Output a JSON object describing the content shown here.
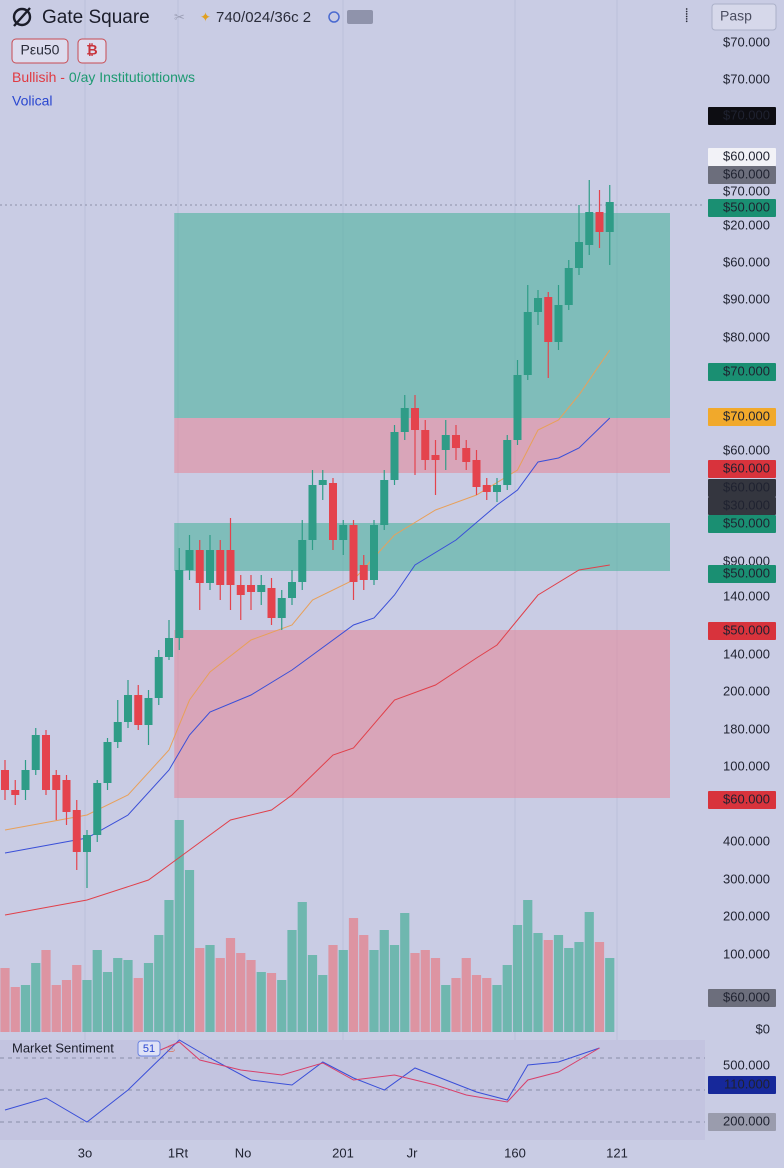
{
  "header": {
    "title": "Gate Square",
    "symbol": "740/024/36c 2",
    "search": "Pasp",
    "pair": "Pεu50",
    "coin": "₿",
    "indicator_a": "Bullisih -",
    "indicator_b": "0/ay Institutiottionws",
    "indicator_c": "Volical"
  },
  "chart_data": {
    "type": "candlestick",
    "ylim": [
      0,
      1040
    ],
    "volume_ylim": [
      0,
      1040
    ],
    "up_color": "#2f9c87",
    "down_color": "#e4434d",
    "volume_up_color": "#5fb3a6",
    "volume_down_color": "#e08a96",
    "open": [
      270,
      250,
      250,
      270,
      305,
      265,
      260,
      230,
      188,
      205,
      257,
      298,
      318,
      345,
      315,
      342,
      383,
      402,
      470,
      490,
      457,
      490,
      490,
      455,
      455,
      448,
      452,
      422,
      442,
      458,
      500,
      555,
      557,
      500,
      515,
      475,
      460,
      515,
      560,
      608,
      632,
      610,
      585,
      590,
      605,
      592,
      580,
      555,
      548,
      555,
      600,
      665,
      728,
      743,
      698,
      735,
      772,
      795,
      828,
      808
    ],
    "high": [
      280,
      260,
      280,
      312,
      310,
      270,
      265,
      240,
      210,
      260,
      302,
      340,
      360,
      355,
      350,
      390,
      420,
      492,
      505,
      500,
      505,
      500,
      522,
      465,
      465,
      465,
      462,
      450,
      470,
      520,
      570,
      570,
      562,
      520,
      520,
      485,
      520,
      570,
      615,
      645,
      645,
      620,
      600,
      620,
      615,
      600,
      590,
      562,
      562,
      605,
      680,
      755,
      750,
      748,
      755,
      780,
      835,
      860,
      850,
      855
    ],
    "low": [
      240,
      235,
      240,
      265,
      245,
      220,
      215,
      170,
      152,
      198,
      250,
      292,
      312,
      310,
      295,
      335,
      380,
      390,
      460,
      430,
      450,
      440,
      430,
      420,
      430,
      435,
      415,
      410,
      435,
      450,
      490,
      540,
      490,
      485,
      440,
      450,
      455,
      510,
      555,
      600,
      565,
      570,
      545,
      570,
      580,
      570,
      545,
      540,
      538,
      550,
      595,
      660,
      715,
      662,
      690,
      730,
      765,
      785,
      792,
      775
    ],
    "close": [
      250,
      245,
      270,
      305,
      250,
      250,
      228,
      188,
      205,
      257,
      298,
      318,
      345,
      315,
      342,
      383,
      402,
      470,
      490,
      457,
      490,
      455,
      455,
      445,
      448,
      455,
      422,
      442,
      458,
      500,
      555,
      560,
      500,
      515,
      458,
      460,
      515,
      560,
      608,
      632,
      610,
      580,
      580,
      605,
      592,
      578,
      553,
      548,
      555,
      600,
      665,
      728,
      742,
      698,
      735,
      772,
      798,
      828,
      808,
      838
    ],
    "volume": [
      64,
      45,
      47,
      69,
      82,
      47,
      52,
      67,
      52,
      82,
      60,
      74,
      72,
      54,
      69,
      97,
      132,
      212,
      162,
      84,
      87,
      74,
      94,
      79,
      72,
      60,
      59,
      52,
      102,
      130,
      77,
      57,
      87,
      82,
      114,
      97,
      82,
      102,
      87,
      119,
      79,
      82,
      74,
      47,
      54,
      74,
      57,
      54,
      47,
      67,
      107,
      132,
      99,
      92,
      97,
      84,
      90,
      120,
      90,
      74
    ],
    "zones": [
      {
        "color": "#4fb39e",
        "start": 17,
        "from": 622,
        "to": 827
      },
      {
        "color": "#e48a9c",
        "start": 17,
        "from": 567,
        "to": 622
      },
      {
        "color": "#4fb39e",
        "start": 17,
        "from": 469,
        "to": 517
      },
      {
        "color": "#e48a9c",
        "start": 17,
        "from": 242,
        "to": 410
      }
    ],
    "lines": [
      {
        "color": "#e8a05a",
        "x": [
          0,
          8,
          12,
          16,
          18,
          20,
          24,
          28,
          30,
          34,
          38,
          42,
          46,
          50,
          52,
          54,
          56,
          58,
          59
        ],
        "values": [
          210,
          225,
          245,
          290,
          340,
          368,
          400,
          415,
          440,
          460,
          505,
          530,
          545,
          570,
          610,
          620,
          645,
          675,
          690
        ]
      },
      {
        "color": "#3a4fd8",
        "x": [
          0,
          8,
          12,
          16,
          18,
          20,
          24,
          28,
          30,
          34,
          36,
          38,
          40,
          44,
          48,
          50,
          52,
          54,
          56,
          58,
          59
        ],
        "values": [
          187,
          202,
          225,
          270,
          305,
          328,
          345,
          370,
          385,
          415,
          422,
          445,
          475,
          500,
          535,
          550,
          578,
          582,
          592,
          612,
          622
        ]
      },
      {
        "color": "#e0404a",
        "x": [
          0,
          8,
          14,
          18,
          22,
          26,
          28,
          32,
          34,
          38,
          42,
          46,
          48,
          50,
          52,
          56,
          59
        ],
        "values": [
          125,
          140,
          160,
          190,
          220,
          230,
          245,
          285,
          292,
          340,
          355,
          382,
          395,
          420,
          445,
          470,
          475
        ]
      }
    ],
    "price_labels": [
      {
        "label": "$70.000"
      },
      {
        "label": "$70.000"
      },
      {
        "label": "$70.000",
        "box": "#0d0d12"
      },
      {
        "label": "$60.000",
        "box": "#f2f2f7"
      },
      {
        "label": "$60.000",
        "box": "#6c6e7c"
      },
      {
        "label": "$70.000"
      },
      {
        "label": "$50.000",
        "box": "#1a8f72"
      },
      {
        "label": "$20.000"
      },
      {
        "label": "$60.000"
      },
      {
        "label": "$90.000"
      },
      {
        "label": "$80.000"
      },
      {
        "label": "$70.000",
        "box": "#1a8f72"
      },
      {
        "label": "$70.000",
        "box": "#f1a92b"
      },
      {
        "label": "$60.000"
      },
      {
        "label": "$60.000",
        "box": "#d8333c"
      },
      {
        "label": "$60.000",
        "box": "#34363f"
      },
      {
        "label": "$30.000",
        "box": "#34363f"
      },
      {
        "label": "$50.000",
        "box": "#1a8f72"
      },
      {
        "label": "$90.000"
      },
      {
        "label": "$50.000",
        "box": "#1a8f72"
      },
      {
        "label": "140.000"
      },
      {
        "label": "$50.000",
        "box": "#d8333c"
      },
      {
        "label": "140.000"
      },
      {
        "label": "200.000"
      },
      {
        "label": "180.000"
      },
      {
        "label": "100.000"
      },
      {
        "label": "$60.000",
        "box": "#d8333c"
      },
      {
        "label": "400.000"
      },
      {
        "label": "300.000"
      },
      {
        "label": "200.000"
      },
      {
        "label": "100.000"
      },
      {
        "label": "$60.000",
        "box": "#6c6e7c"
      },
      {
        "label": "$0"
      }
    ],
    "time_labels": [
      "3o",
      "1Rt",
      "No",
      "201",
      "Jr",
      "160",
      "121"
    ]
  },
  "sentiment": {
    "title": "Market Sentiment",
    "badge": "51",
    "ylim": [
      0,
      100
    ],
    "lines": [
      {
        "color": "#3a4fd8",
        "x": [
          0,
          4,
          8,
          12,
          17,
          20,
          24,
          28,
          31,
          34,
          37,
          40,
          43,
          46,
          49,
          51,
          54,
          58
        ],
        "values": [
          30,
          42,
          18,
          50,
          100,
          82,
          60,
          55,
          78,
          62,
          50,
          72,
          60,
          48,
          40,
          75,
          78,
          92
        ]
      },
      {
        "color": "#d8406a",
        "x": [
          14,
          17,
          19,
          23,
          27,
          31,
          34,
          38,
          42,
          45,
          49,
          51,
          54,
          58
        ],
        "values": [
          85,
          98,
          80,
          70,
          65,
          77,
          60,
          65,
          55,
          45,
          38,
          60,
          68,
          92
        ]
      }
    ],
    "labels": [
      {
        "label": "500.000"
      },
      {
        "label": "110.000",
        "box": "#16289a"
      },
      {
        "label": "200.000",
        "box": "#9a9cad"
      }
    ]
  }
}
